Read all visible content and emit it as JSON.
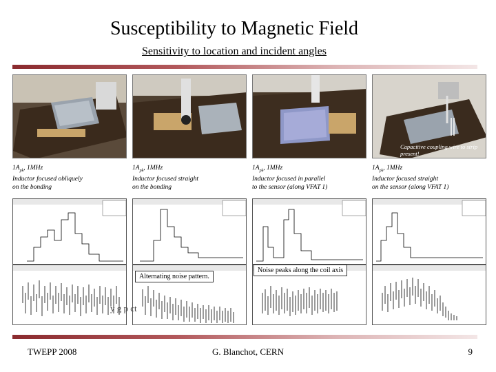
{
  "slide": {
    "title": "Susceptibility to Magnetic Field",
    "subtitle": "Sensitivity to location and incident angles"
  },
  "photos": [
    {
      "name": "photo-1",
      "arrow_note": ""
    },
    {
      "name": "photo-2",
      "arrow_note": ""
    },
    {
      "name": "photo-3",
      "arrow_note": ""
    },
    {
      "name": "photo-4",
      "arrow_note": "Capacitive coupling wire to strip present!"
    }
  ],
  "captions": [
    {
      "current": "1A",
      "current_sub": "pk",
      "freq": ", 1MHz",
      "line2": "Inductor focused obliquely",
      "line3": "on the bonding"
    },
    {
      "current": "1A",
      "current_sub": "pk",
      "freq": ", 1MHz",
      "line2": "Inductor focused straight",
      "line3": "on the bonding"
    },
    {
      "current": "1A",
      "current_sub": "pk",
      "freq": ", 1MHz",
      "line2": "Inductor focused in parallel",
      "line3": "to the sensor (along VFAT 1)"
    },
    {
      "current": "1A",
      "current_sub": "pk",
      "freq": ", 1MHz",
      "line2": "Inductor focused straight",
      "line3": "on the sensor (along VFAT 1)"
    }
  ],
  "callouts": {
    "alternating": "Alternating noise pattern.",
    "coil_axis": "Noise peaks along the coil axis"
  },
  "obscured_text": "y     g  p                ct",
  "footer": {
    "left": "TWEPP 2008",
    "center": "G. Blanchot, CERN",
    "page": "9"
  },
  "colors": {
    "rule_dark": "#8a2a2e",
    "rule_light": "#f3e6e6"
  }
}
